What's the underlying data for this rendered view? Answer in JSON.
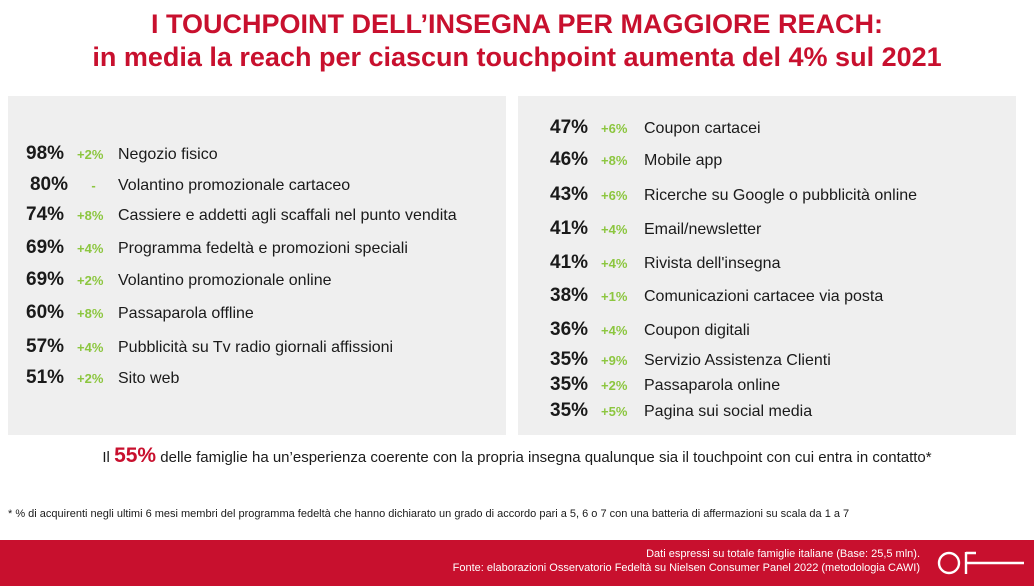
{
  "title": {
    "line1": "I TOUCHPOINT DELL’INSEGNA PER MAGGIORE REACH:",
    "line2": "in media la reach per ciascun touchpoint aumenta del 4% sul 2021"
  },
  "left_items": [
    {
      "pct": "98%",
      "delta": "+2%",
      "label": "Negozio fisico"
    },
    {
      "pct": "80%",
      "delta": "-",
      "label": "Volantino promozionale cartaceo"
    },
    {
      "pct": "74%",
      "delta": "+8%",
      "label": "Cassiere e addetti agli scaffali nel punto vendita"
    },
    {
      "pct": "69%",
      "delta": "+4%",
      "label": "Programma fedeltà e promozioni speciali"
    },
    {
      "pct": "69%",
      "delta": "+2%",
      "label": "Volantino promozionale online"
    },
    {
      "pct": "60%",
      "delta": "+8%",
      "label": "Passaparola offline"
    },
    {
      "pct": "57%",
      "delta": "+4%",
      "label": "Pubblicità su Tv  radio  giornali  affissioni"
    },
    {
      "pct": "51%",
      "delta": "+2%",
      "label": "Sito web"
    }
  ],
  "right_items": [
    {
      "pct": "47%",
      "delta": "+6%",
      "label": "Coupon cartacei"
    },
    {
      "pct": "46%",
      "delta": "+8%",
      "label": "Mobile app"
    },
    {
      "pct": "43%",
      "delta": "+6%",
      "label": "Ricerche su Google o pubblicità online"
    },
    {
      "pct": "41%",
      "delta": "+4%",
      "label": "Email/newsletter"
    },
    {
      "pct": "41%",
      "delta": "+4%",
      "label": "Rivista dell'insegna"
    },
    {
      "pct": "38%",
      "delta": "+1%",
      "label": "Comunicazioni cartacee via posta"
    },
    {
      "pct": "36%",
      "delta": "+4%",
      "label": "Coupon digitali"
    },
    {
      "pct": "35%",
      "delta": "+9%",
      "label": "Servizio Assistenza Clienti"
    },
    {
      "pct": "35%",
      "delta": "+2%",
      "label": "Passaparola online"
    },
    {
      "pct": "35%",
      "delta": "+5%",
      "label": "Pagina sui social media"
    }
  ],
  "statement": {
    "prefix": "Il",
    "highlight": "55%",
    "suffix": "delle famiglie ha un’esperienza coerente con la propria insegna qualunque sia il touchpoint con cui entra in contatto*"
  },
  "footnote": "* % di acquirenti negli ultimi 6 mesi  membri del programma fedeltà che hanno dichiarato un grado di accordo pari a 5, 6 o 7 con una batteria di affermazioni su scala da 1 a 7",
  "footer": {
    "line1": "Dati espressi su totale famiglie italiane (Base: 25,5 mln).",
    "line2": "Fonte: elaborazioni Osservatorio Fedeltà su Nielsen Consumer Panel 2022 (metodologia CAWI)",
    "logo_text": "OF"
  },
  "colors": {
    "accent": "#c8102e",
    "delta_green": "#8cc63f",
    "panel_bg": "#efefef"
  }
}
